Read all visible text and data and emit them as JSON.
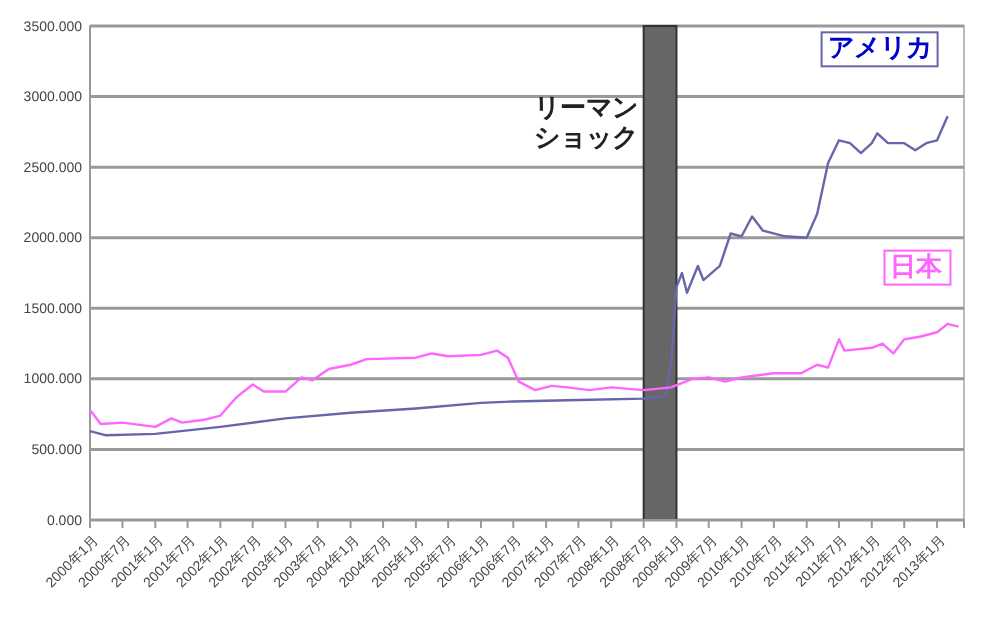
{
  "chart_data": {
    "type": "line",
    "xlim": [
      "2000-01",
      "2013-06"
    ],
    "ylim": [
      0,
      3500
    ],
    "yticks": [
      {
        "value": 0,
        "label": "0.000"
      },
      {
        "value": 500,
        "label": "500.000"
      },
      {
        "value": 1000,
        "label": "1000.000"
      },
      {
        "value": 1500,
        "label": "1500.000"
      },
      {
        "value": 2000,
        "label": "2000.000"
      },
      {
        "value": 2500,
        "label": "2500.000"
      },
      {
        "value": 3000,
        "label": "3000.000"
      },
      {
        "value": 3500,
        "label": "3500.000"
      }
    ],
    "xticks": [
      {
        "value": "2000-01",
        "label": "2000年1月"
      },
      {
        "value": "2000-07",
        "label": "2000年7月"
      },
      {
        "value": "2001-01",
        "label": "2001年1月"
      },
      {
        "value": "2001-07",
        "label": "2001年7月"
      },
      {
        "value": "2002-01",
        "label": "2002年1月"
      },
      {
        "value": "2002-07",
        "label": "2002年7月"
      },
      {
        "value": "2003-01",
        "label": "2003年1月"
      },
      {
        "value": "2003-07",
        "label": "2003年7月"
      },
      {
        "value": "2004-01",
        "label": "2004年1月"
      },
      {
        "value": "2004-07",
        "label": "2004年7月"
      },
      {
        "value": "2005-01",
        "label": "2005年1月"
      },
      {
        "value": "2005-07",
        "label": "2005年7月"
      },
      {
        "value": "2006-01",
        "label": "2006年1月"
      },
      {
        "value": "2006-07",
        "label": "2006年7月"
      },
      {
        "value": "2007-01",
        "label": "2007年1月"
      },
      {
        "value": "2007-07",
        "label": "2007年7月"
      },
      {
        "value": "2008-01",
        "label": "2008年1月"
      },
      {
        "value": "2008-07",
        "label": "2008年7月"
      },
      {
        "value": "2009-01",
        "label": "2009年1月"
      },
      {
        "value": "2009-07",
        "label": "2009年7月"
      },
      {
        "value": "2010-01",
        "label": "2010年1月"
      },
      {
        "value": "2010-07",
        "label": "2010年7月"
      },
      {
        "value": "2011-01",
        "label": "2011年1月"
      },
      {
        "value": "2011-07",
        "label": "2011年7月"
      },
      {
        "value": "2012-01",
        "label": "2012年1月"
      },
      {
        "value": "2012-07",
        "label": "2012年7月"
      },
      {
        "value": "2013-01",
        "label": "2013年1月"
      }
    ],
    "grid": "y",
    "legend": false,
    "marker": "none",
    "line_style": "solid",
    "bands": [
      {
        "axis": "x",
        "from": "2008-07",
        "to": "2009-01",
        "label": "リーマンショック",
        "color": "#666666"
      }
    ],
    "series": [
      {
        "name": "アメリカ",
        "color": "#6666aa",
        "x": [
          "2000-01",
          "2000-04",
          "2001-01",
          "2002-01",
          "2003-01",
          "2004-01",
          "2005-01",
          "2006-01",
          "2006-07",
          "2007-07",
          "2008-07",
          "2008-11",
          "2008-12",
          "2009-01",
          "2009-02",
          "2009-03",
          "2009-05",
          "2009-06",
          "2009-09",
          "2009-11",
          "2010-01",
          "2010-03",
          "2010-05",
          "2010-09",
          "2011-01",
          "2011-03",
          "2011-05",
          "2011-07",
          "2011-09",
          "2011-11",
          "2012-01",
          "2012-02",
          "2012-04",
          "2012-07",
          "2012-09",
          "2012-11",
          "2013-01",
          "2013-03"
        ],
        "values": [
          630,
          600,
          610,
          660,
          720,
          760,
          790,
          830,
          840,
          850,
          860,
          880,
          1100,
          1650,
          1750,
          1610,
          1800,
          1700,
          1800,
          2030,
          2010,
          2150,
          2050,
          2010,
          2000,
          2170,
          2530,
          2690,
          2670,
          2600,
          2670,
          2740,
          2670,
          2670,
          2620,
          2670,
          2690,
          2860
        ]
      },
      {
        "name": "日本",
        "color": "#ff66ff",
        "x": [
          "2000-01",
          "2000-03",
          "2000-07",
          "2001-01",
          "2001-04",
          "2001-06",
          "2001-10",
          "2002-01",
          "2002-04",
          "2002-07",
          "2002-09",
          "2003-01",
          "2003-04",
          "2003-06",
          "2003-09",
          "2004-01",
          "2004-04",
          "2005-01",
          "2005-04",
          "2005-07",
          "2006-01",
          "2006-04",
          "2006-06",
          "2006-08",
          "2006-11",
          "2007-02",
          "2007-05",
          "2007-09",
          "2008-01",
          "2008-07",
          "2008-12",
          "2009-04",
          "2009-07",
          "2009-10",
          "2010-01",
          "2010-07",
          "2010-12",
          "2011-03",
          "2011-05",
          "2011-07",
          "2011-08",
          "2012-01",
          "2012-03",
          "2012-05",
          "2012-07",
          "2012-10",
          "2013-01",
          "2013-03",
          "2013-05"
        ],
        "values": [
          780,
          680,
          690,
          660,
          720,
          690,
          710,
          740,
          870,
          960,
          910,
          910,
          1010,
          990,
          1070,
          1100,
          1140,
          1150,
          1180,
          1160,
          1170,
          1200,
          1150,
          980,
          920,
          950,
          940,
          920,
          940,
          920,
          940,
          1000,
          1010,
          980,
          1010,
          1040,
          1040,
          1100,
          1080,
          1280,
          1200,
          1220,
          1250,
          1180,
          1280,
          1300,
          1330,
          1390,
          1370
        ]
      }
    ]
  }
}
